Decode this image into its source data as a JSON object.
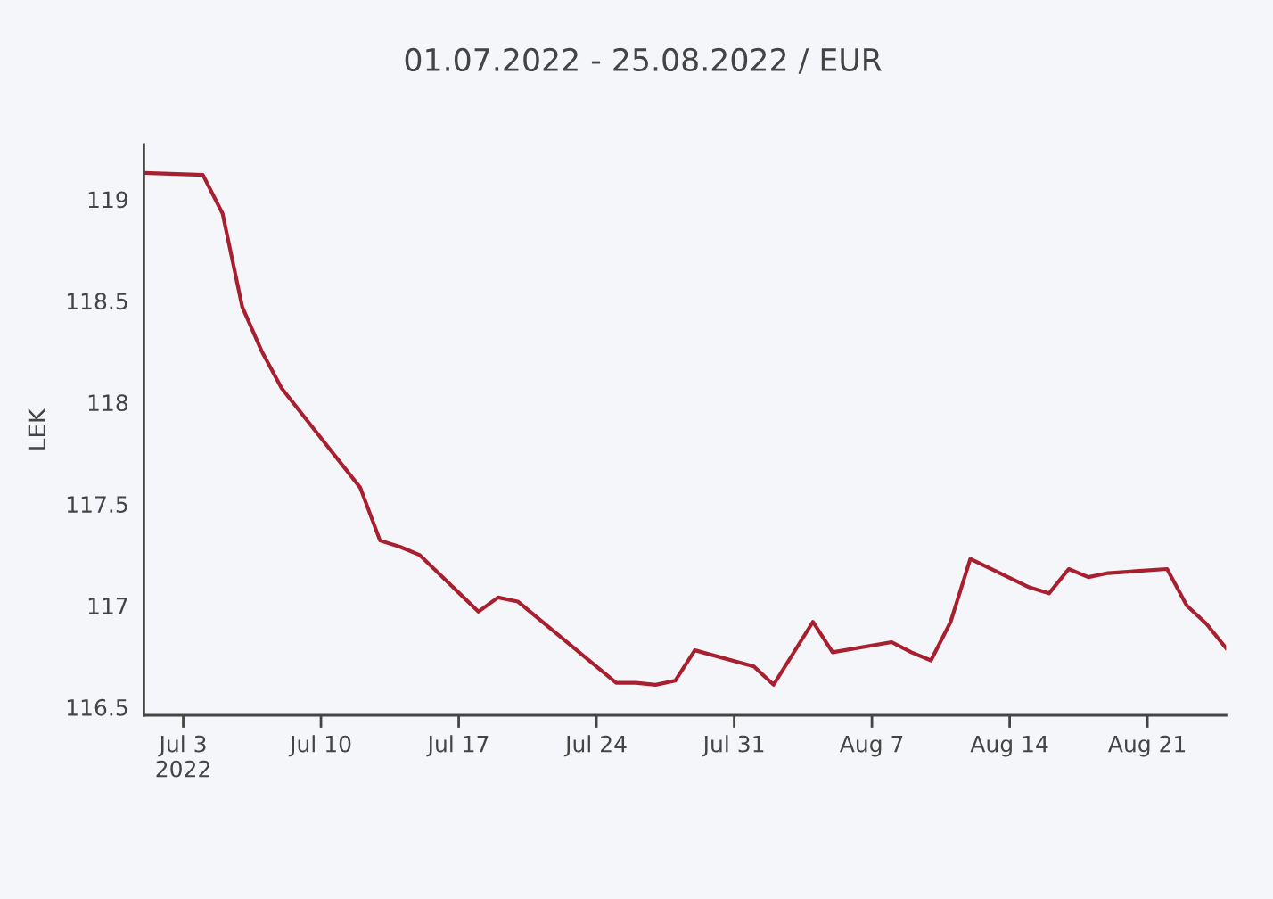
{
  "chart_data": {
    "type": "line",
    "title": "01.07.2022 - 25.08.2022 / EUR",
    "ylabel": "LEK",
    "x": [
      "2022-07-01",
      "2022-07-04",
      "2022-07-05",
      "2022-07-06",
      "2022-07-07",
      "2022-07-08",
      "2022-07-12",
      "2022-07-13",
      "2022-07-14",
      "2022-07-15",
      "2022-07-18",
      "2022-07-19",
      "2022-07-20",
      "2022-07-21",
      "2022-07-25",
      "2022-07-26",
      "2022-07-27",
      "2022-07-28",
      "2022-07-29",
      "2022-08-01",
      "2022-08-02",
      "2022-08-04",
      "2022-08-05",
      "2022-08-08",
      "2022-08-09",
      "2022-08-10",
      "2022-08-11",
      "2022-08-12",
      "2022-08-15",
      "2022-08-16",
      "2022-08-17",
      "2022-08-18",
      "2022-08-19",
      "2022-08-22",
      "2022-08-23",
      "2022-08-24",
      "2022-08-25"
    ],
    "series": [
      {
        "color": "#a8202f",
        "values": [
          119.13,
          119.12,
          118.93,
          118.47,
          118.25,
          118.07,
          117.58,
          117.32,
          117.29,
          117.25,
          116.97,
          117.04,
          117.02,
          116.94,
          116.62,
          116.62,
          116.61,
          116.63,
          116.78,
          116.7,
          116.61,
          116.92,
          116.77,
          116.82,
          116.77,
          116.73,
          116.92,
          117.23,
          117.09,
          117.06,
          117.18,
          117.14,
          117.16,
          117.18,
          117.0,
          116.91,
          116.79
        ]
      }
    ],
    "xlim": [
      "2022-07-01",
      "2022-08-25"
    ],
    "xticks": [
      {
        "value": "2022-07-03",
        "label": "Jul 3\n2022"
      },
      {
        "value": "2022-07-10",
        "label": "Jul 10"
      },
      {
        "value": "2022-07-17",
        "label": "Jul 17"
      },
      {
        "value": "2022-07-24",
        "label": "Jul 24"
      },
      {
        "value": "2022-07-31",
        "label": "Jul 31"
      },
      {
        "value": "2022-08-07",
        "label": "Aug 7"
      },
      {
        "value": "2022-08-14",
        "label": "Aug 14"
      },
      {
        "value": "2022-08-21",
        "label": "Aug 21"
      }
    ],
    "ylim": [
      116.46,
      119.27
    ],
    "yticks": [
      116.5,
      117,
      117.5,
      118,
      118.5,
      119
    ],
    "grid": false,
    "line_style": "solid"
  }
}
